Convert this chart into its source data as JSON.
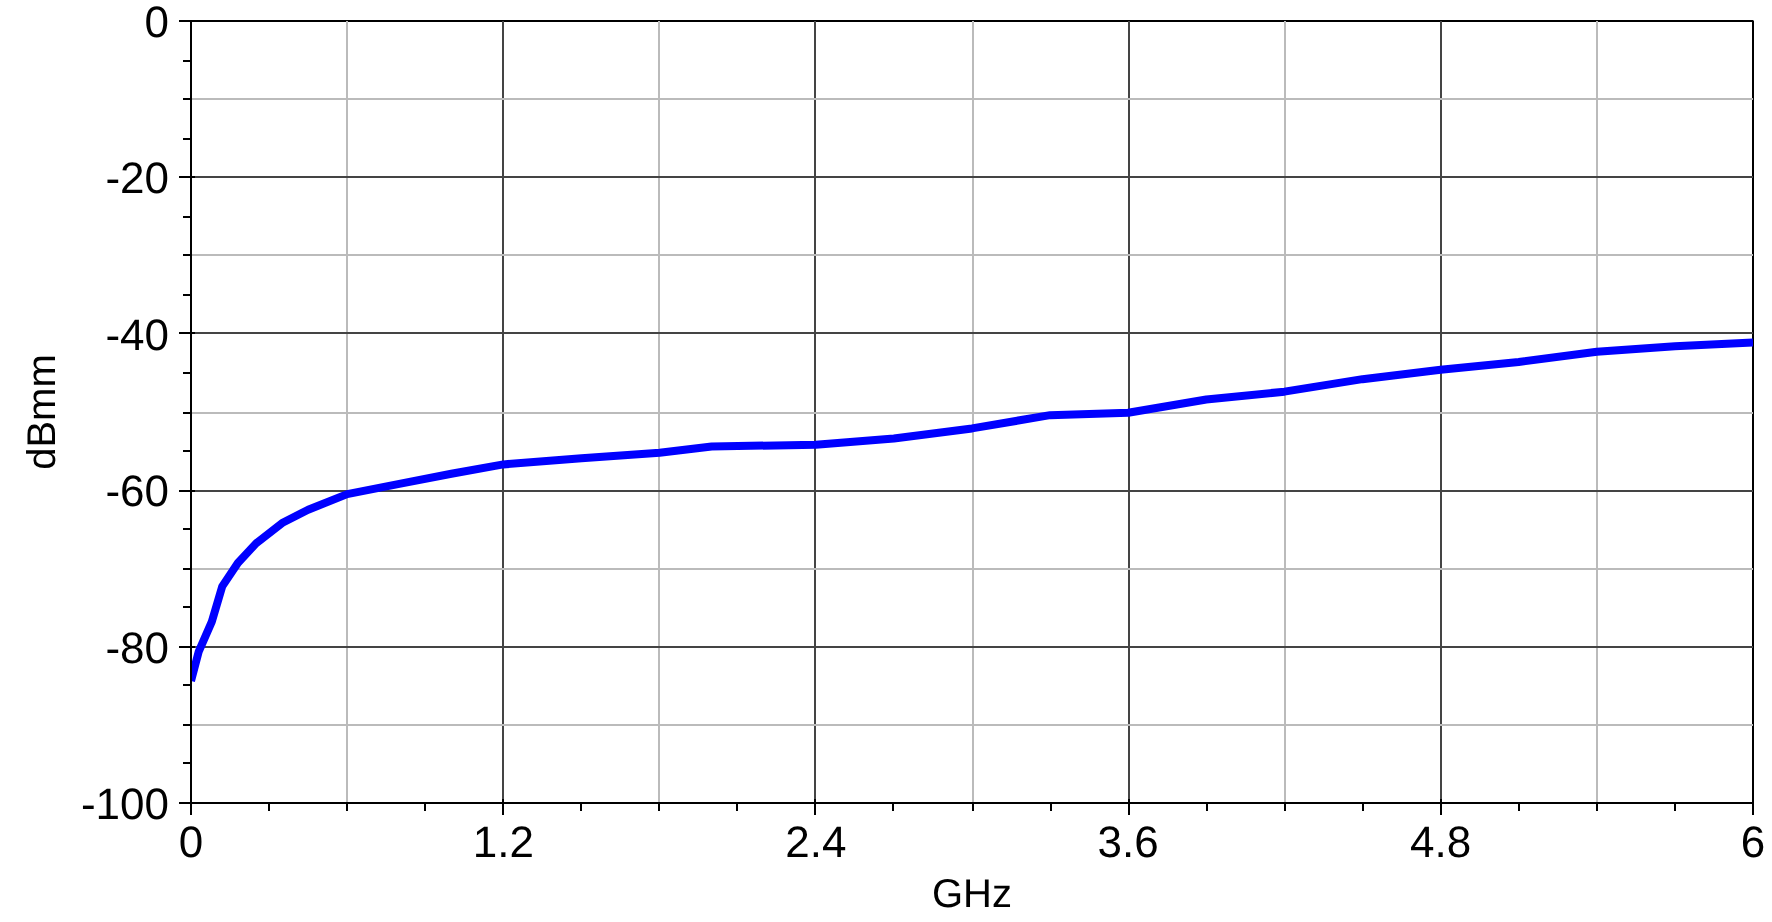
{
  "chart_data": {
    "type": "line",
    "xlabel": "GHz",
    "ylabel": "dBmm",
    "x": [
      0,
      0.03,
      0.08,
      0.12,
      0.18,
      0.25,
      0.35,
      0.45,
      0.6,
      0.8,
      1.0,
      1.2,
      1.5,
      1.8,
      2.0,
      2.4,
      2.7,
      3.0,
      3.3,
      3.6,
      3.9,
      4.2,
      4.5,
      4.8,
      5.1,
      5.4,
      5.7,
      6.0
    ],
    "series": [
      {
        "color": "#0000ff",
        "values": [
          -84.4,
          -80.6,
          -76.8,
          -72.3,
          -69.3,
          -66.8,
          -64.2,
          -62.5,
          -60.5,
          -59.2,
          -57.9,
          -56.7,
          -55.9,
          -55.2,
          -54.4,
          -54.2,
          -53.4,
          -52.1,
          -50.4,
          -50.1,
          -48.4,
          -47.4,
          -45.8,
          -44.6,
          -43.6,
          -42.3,
          -41.6,
          -41.1
        ]
      }
    ],
    "xlim": [
      0,
      6
    ],
    "xticks": [
      0,
      1.2,
      2.4,
      3.6,
      4.8,
      6
    ],
    "ylim": [
      -100,
      0
    ],
    "yticks": [
      -100,
      -80,
      -60,
      -40,
      -20,
      0
    ],
    "grid": true,
    "marker": "none",
    "line_style": "solid"
  }
}
